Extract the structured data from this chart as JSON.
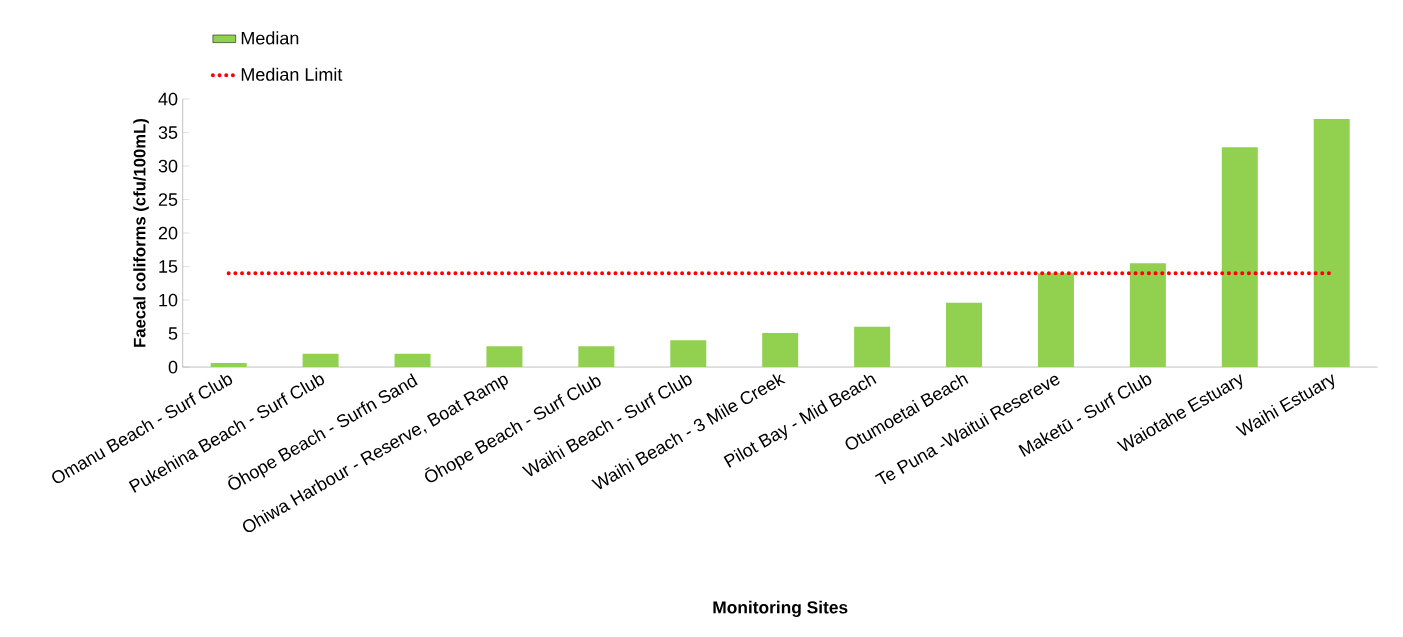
{
  "chart_data": {
    "type": "bar",
    "xlabel": "Monitoring Sites",
    "ylabel": "Faecal coliforms (cfu/100mL)",
    "categories": [
      "Omanu Beach - Surf Club",
      "Pukehina Beach - Surf Club",
      "Ōhope Beach - Surfn Sand",
      "Ohiwa Harbour - Reserve, Boat Ramp",
      "Ōhope Beach - Surf Club",
      "Waihi Beach - Surf Club",
      "Waihi Beach - 3 Mile Creek",
      "Pilot Bay - Mid Beach",
      "Otumoetai Beach",
      "Te Puna -Waitui Resereve",
      "Maketū - Surf Club",
      "Waiotahe Estuary",
      "Waihi Estuary"
    ],
    "series": [
      {
        "name": "Median",
        "color": "#92d050",
        "values": [
          0.6,
          2,
          2,
          3.1,
          3.1,
          4,
          5.1,
          6,
          9.6,
          14,
          15.5,
          32.8,
          37
        ]
      }
    ],
    "ref_lines": [
      {
        "axis": "y",
        "value": 14,
        "label": "Median Limit",
        "color": "#ff0000",
        "line_style": "dotted"
      }
    ],
    "ylim": [
      0,
      40
    ],
    "yticks": [
      0,
      5,
      10,
      15,
      20,
      25,
      30,
      35,
      40
    ],
    "grid": false,
    "legend": "top left"
  }
}
